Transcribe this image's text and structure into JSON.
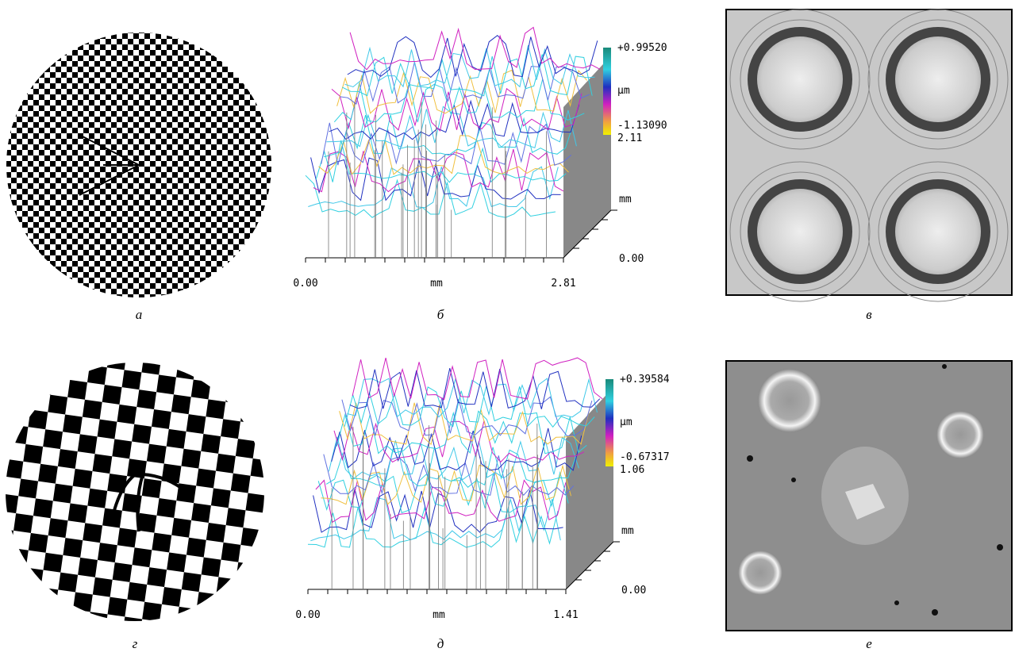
{
  "panels": [
    {
      "label": "а"
    },
    {
      "label": "б",
      "scale": {
        "max": "+0.99520",
        "unit": "µm",
        "min": "-1.13090"
      },
      "depth_axis": {
        "max": "2.11",
        "unit": "mm",
        "min": "0.00"
      },
      "x_axis": {
        "min": "0.00",
        "unit": "mm",
        "max": "2.81"
      }
    },
    {
      "label": "в"
    },
    {
      "label": "г"
    },
    {
      "label": "д",
      "scale": {
        "max": "+0.39584",
        "unit": "µm",
        "min": "-0.67317"
      },
      "depth_axis": {
        "max": "1.06",
        "unit": "mm",
        "min": "0.00"
      },
      "x_axis": {
        "min": "0.00",
        "unit": "mm",
        "max": "1.41"
      }
    },
    {
      "label": "е"
    }
  ]
}
